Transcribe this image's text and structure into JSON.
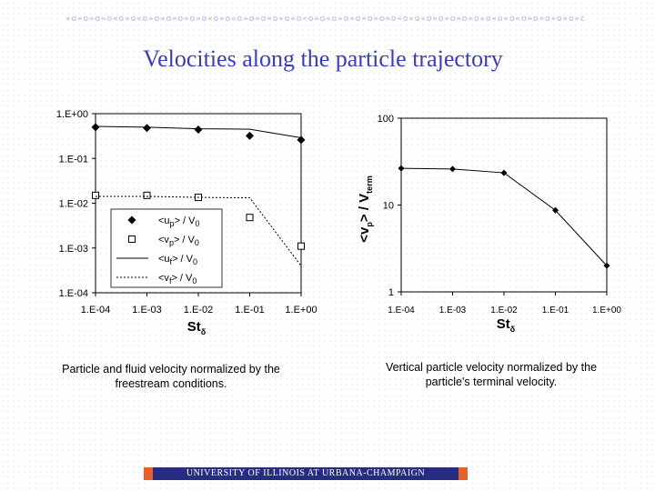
{
  "slide": {
    "title": "Velocities along the particle trajectory",
    "footer": "UNIVERSITY OF ILLINOIS AT URBANA-CHAMPAIGN",
    "decoration": "«o»o«o»o«o»o«o»o«o»o«o»o«o»o«o»o«o»o«o»o«o»o«o»o«o»o«o»o«o»o«o»o«o»o«o»o«o»o«o»o«o»o«o»o«o»o«o»o«o»o«o»o«o»o"
  },
  "chart_data": [
    {
      "type": "line",
      "x_scale": "log",
      "y_scale": "log",
      "x": [
        0.0001,
        0.001,
        0.01,
        0.1,
        1
      ],
      "x_tick_labels": [
        "1.E-04",
        "1.E-03",
        "1.E-02",
        "1.E-01",
        "1.E+00"
      ],
      "y_tick_labels": [
        "1.E+00",
        "1.E-01",
        "1.E-02",
        "1.E-03",
        "1.E-04"
      ],
      "xlim": [
        0.0001,
        1
      ],
      "ylim": [
        0.0001,
        1
      ],
      "xlabel": "St",
      "xlabel_sub": "δ",
      "ylabel": "",
      "legend_position": "bottom-left inside",
      "series": [
        {
          "name": "<up> / V0",
          "name_main": "<u",
          "name_sub": "p",
          "name_mid": "> / V",
          "name_sub2": "0",
          "style": "marker",
          "marker": "filled-diamond",
          "values": [
            0.5,
            0.48,
            0.44,
            0.32,
            0.26
          ]
        },
        {
          "name": "<vp> / V0",
          "name_main": "<v",
          "name_sub": "p",
          "name_mid": "> / V",
          "name_sub2": "0",
          "style": "marker",
          "marker": "open-square",
          "values": [
            0.015,
            0.015,
            0.0135,
            0.0048,
            0.0011
          ]
        },
        {
          "name": "<uf> / V0",
          "name_main": "<u",
          "name_sub": "f",
          "name_mid": "> / V",
          "name_sub2": "0",
          "style": "solid",
          "values": [
            0.52,
            0.5,
            0.46,
            0.45,
            0.29
          ]
        },
        {
          "name": "<vf> / V0",
          "name_main": "<v",
          "name_sub": "f",
          "name_mid": "> / V",
          "name_sub2": "0",
          "style": "dotted",
          "values": [
            0.0142,
            0.0142,
            0.0135,
            0.0132,
            0.0004
          ]
        }
      ],
      "caption": "Particle and fluid velocity normalized by the freestream conditions."
    },
    {
      "type": "line",
      "x_scale": "log",
      "y_scale": "log",
      "x": [
        0.0001,
        0.001,
        0.01,
        0.1,
        1
      ],
      "x_tick_labels": [
        "1.E-04",
        "1.E-03",
        "1.E-02",
        "1.E-01",
        "1.E+00"
      ],
      "y_tick_labels": [
        "100",
        "10",
        "1"
      ],
      "xlim": [
        0.0001,
        1
      ],
      "ylim": [
        1,
        100
      ],
      "xlabel": "St",
      "xlabel_sub": "δ",
      "ylabel_main": "<v",
      "ylabel_sub": "p",
      "ylabel_mid": "> / V",
      "ylabel_sub2": "term",
      "series": [
        {
          "style": "marker-line",
          "marker": "filled-diamond",
          "values": [
            26.5,
            26,
            23.5,
            8.7,
            2.0
          ]
        }
      ],
      "caption": "Vertical particle velocity normalized by the particle's terminal velocity."
    }
  ]
}
